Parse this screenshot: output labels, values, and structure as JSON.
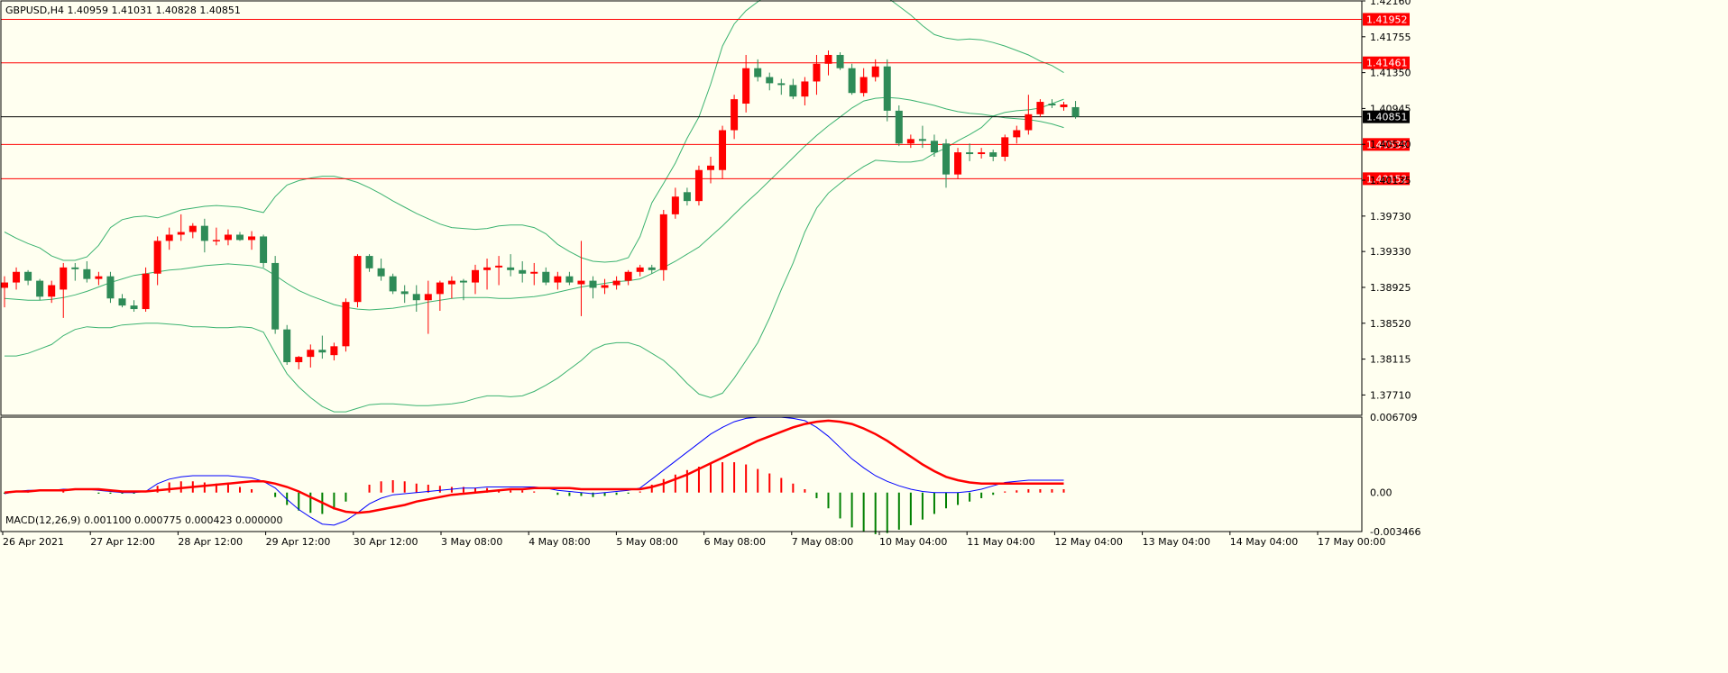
{
  "header": {
    "symbol_info": "GBPUSD,H4  1.40959 1.41031 1.40828 1.40851",
    "macd_info": "MACD(12,26,9) 0.001100 0.000775 0.000423 0.000000"
  },
  "colors": {
    "background": "#fffff0",
    "bull_candle": "#ff0000",
    "bear_candle": "#2e8b57",
    "bollinger": "#3cb371",
    "level_line": "#ff0000",
    "price_line": "#000000",
    "macd_main": "#0000ff",
    "macd_signal": "#ff0000"
  },
  "chart_data": [
    {
      "type": "candlestick",
      "title": "GBPUSD,H4",
      "ohlc_header": {
        "open": 1.40959,
        "high": 1.41031,
        "low": 1.40828,
        "close": 1.40851
      },
      "ylim": [
        1.3748,
        1.4216
      ],
      "y_ticks": [
        "1.42160",
        "1.41755",
        "1.41350",
        "1.40945",
        "1.40540",
        "1.40135",
        "1.39730",
        "1.39330",
        "1.38925",
        "1.38520",
        "1.38115",
        "1.37710"
      ],
      "x_ticks": [
        "26 Apr 2021",
        "27 Apr 12:00",
        "28 Apr 12:00",
        "29 Apr 12:00",
        "30 Apr 12:00",
        "3 May 08:00",
        "4 May 08:00",
        "5 May 08:00",
        "6 May 08:00",
        "7 May 08:00",
        "10 May 04:00",
        "11 May 04:00",
        "12 May 04:00",
        "13 May 04:00",
        "14 May 04:00",
        "17 May 00:00"
      ],
      "levels": [
        {
          "label": "1.41952",
          "value": 1.41952
        },
        {
          "label": "1.41461",
          "value": 1.41461
        },
        {
          "label": "1.40539",
          "value": 1.40539
        },
        {
          "label": "1.40152",
          "value": 1.40152
        }
      ],
      "current_price": {
        "label": "1.40851",
        "value": 1.40851
      },
      "candles": [
        [
          1.3892,
          1.3905,
          1.387,
          1.3898
        ],
        [
          1.3898,
          1.3915,
          1.389,
          1.391
        ],
        [
          1.391,
          1.3912,
          1.3895,
          1.39
        ],
        [
          1.39,
          1.3902,
          1.3878,
          1.3882
        ],
        [
          1.3882,
          1.39,
          1.3875,
          1.3895
        ],
        [
          1.389,
          1.392,
          1.3858,
          1.3915
        ],
        [
          1.3915,
          1.392,
          1.39,
          1.3913
        ],
        [
          1.3913,
          1.3922,
          1.3898,
          1.3902
        ],
        [
          1.3902,
          1.391,
          1.3895,
          1.3905
        ],
        [
          1.3905,
          1.391,
          1.3875,
          1.388
        ],
        [
          1.388,
          1.3885,
          1.387,
          1.3872
        ],
        [
          1.3872,
          1.3878,
          1.3865,
          1.3868
        ],
        [
          1.3868,
          1.3915,
          1.3865,
          1.3908
        ],
        [
          1.3908,
          1.395,
          1.3895,
          1.3945
        ],
        [
          1.3945,
          1.396,
          1.3935,
          1.3952
        ],
        [
          1.3952,
          1.3975,
          1.3945,
          1.3955
        ],
        [
          1.3955,
          1.3965,
          1.3948,
          1.3962
        ],
        [
          1.3962,
          1.397,
          1.3932,
          1.3945
        ],
        [
          1.3945,
          1.396,
          1.394,
          1.3946
        ],
        [
          1.3946,
          1.3958,
          1.394,
          1.3952
        ],
        [
          1.3952,
          1.3955,
          1.3945,
          1.3946
        ],
        [
          1.3946,
          1.3956,
          1.3935,
          1.395
        ],
        [
          1.395,
          1.3952,
          1.3915,
          1.392
        ],
        [
          1.392,
          1.3928,
          1.384,
          1.3845
        ],
        [
          1.3845,
          1.385,
          1.3805,
          1.3808
        ],
        [
          1.3808,
          1.3815,
          1.38,
          1.3814
        ],
        [
          1.3814,
          1.3828,
          1.3802,
          1.3822
        ],
        [
          1.3822,
          1.3838,
          1.3812,
          1.3819
        ],
        [
          1.3816,
          1.383,
          1.381,
          1.3826
        ],
        [
          1.3826,
          1.388,
          1.382,
          1.3876
        ],
        [
          1.3876,
          1.393,
          1.387,
          1.3928
        ],
        [
          1.3928,
          1.393,
          1.391,
          1.3914
        ],
        [
          1.3914,
          1.3925,
          1.39,
          1.3905
        ],
        [
          1.3905,
          1.3908,
          1.3885,
          1.3888
        ],
        [
          1.3888,
          1.3895,
          1.3875,
          1.3885
        ],
        [
          1.3885,
          1.3895,
          1.3865,
          1.3878
        ],
        [
          1.3878,
          1.39,
          1.384,
          1.3885
        ],
        [
          1.3885,
          1.39,
          1.3866,
          1.3898
        ],
        [
          1.3896,
          1.3905,
          1.388,
          1.39
        ],
        [
          1.39,
          1.3902,
          1.3878,
          1.3898
        ],
        [
          1.3898,
          1.3918,
          1.3885,
          1.3912
        ],
        [
          1.3912,
          1.3925,
          1.389,
          1.3915
        ],
        [
          1.3915,
          1.3928,
          1.3895,
          1.3917
        ],
        [
          1.3915,
          1.393,
          1.3905,
          1.3912
        ],
        [
          1.3912,
          1.3922,
          1.3898,
          1.3908
        ],
        [
          1.3908,
          1.392,
          1.3895,
          1.391
        ],
        [
          1.391,
          1.3915,
          1.3895,
          1.3898
        ],
        [
          1.3898,
          1.391,
          1.389,
          1.3905
        ],
        [
          1.3905,
          1.391,
          1.3895,
          1.3898
        ],
        [
          1.3896,
          1.3945,
          1.386,
          1.39
        ],
        [
          1.39,
          1.3905,
          1.388,
          1.3892
        ],
        [
          1.3892,
          1.3902,
          1.3885,
          1.3895
        ],
        [
          1.3895,
          1.3905,
          1.389,
          1.39
        ],
        [
          1.39,
          1.3912,
          1.3895,
          1.391
        ],
        [
          1.391,
          1.3918,
          1.3905,
          1.3915
        ],
        [
          1.3915,
          1.3918,
          1.3908,
          1.3912
        ],
        [
          1.3912,
          1.398,
          1.39,
          1.3975
        ],
        [
          1.3975,
          1.4005,
          1.397,
          1.3995
        ],
        [
          1.4,
          1.4005,
          1.3985,
          1.399
        ],
        [
          1.399,
          1.403,
          1.3985,
          1.4025
        ],
        [
          1.4025,
          1.404,
          1.401,
          1.403
        ],
        [
          1.4025,
          1.4075,
          1.4015,
          1.407
        ],
        [
          1.407,
          1.411,
          1.406,
          1.4105
        ],
        [
          1.41,
          1.4155,
          1.409,
          1.414
        ],
        [
          1.414,
          1.415,
          1.4125,
          1.413
        ],
        [
          1.413,
          1.4135,
          1.4115,
          1.4123
        ],
        [
          1.4123,
          1.4128,
          1.411,
          1.4121
        ],
        [
          1.4121,
          1.4128,
          1.4105,
          1.4108
        ],
        [
          1.4108,
          1.413,
          1.4098,
          1.4125
        ],
        [
          1.4125,
          1.4155,
          1.411,
          1.4145
        ],
        [
          1.4145,
          1.416,
          1.4132,
          1.4155
        ],
        [
          1.4155,
          1.4158,
          1.4138,
          1.414
        ],
        [
          1.414,
          1.4145,
          1.411,
          1.4112
        ],
        [
          1.4112,
          1.414,
          1.4108,
          1.413
        ],
        [
          1.413,
          1.415,
          1.4125,
          1.4142
        ],
        [
          1.4142,
          1.415,
          1.408,
          1.4092
        ],
        [
          1.4092,
          1.4098,
          1.4052,
          1.4055
        ],
        [
          1.4055,
          1.4065,
          1.405,
          1.406
        ],
        [
          1.406,
          1.4075,
          1.405,
          1.4058
        ],
        [
          1.4058,
          1.4065,
          1.404,
          1.4045
        ],
        [
          1.4055,
          1.406,
          1.4005,
          1.402
        ],
        [
          1.402,
          1.405,
          1.4015,
          1.4045
        ],
        [
          1.4045,
          1.4055,
          1.4035,
          1.4043
        ],
        [
          1.4043,
          1.405,
          1.4038,
          1.4045
        ],
        [
          1.4045,
          1.4048,
          1.4035,
          1.404
        ],
        [
          1.404,
          1.4065,
          1.4035,
          1.4062
        ],
        [
          1.4062,
          1.4075,
          1.4055,
          1.407
        ],
        [
          1.407,
          1.411,
          1.4065,
          1.4088
        ],
        [
          1.4088,
          1.4105,
          1.4085,
          1.4102
        ],
        [
          1.41,
          1.4105,
          1.4095,
          1.4098
        ],
        [
          1.4096,
          1.4102,
          1.4092,
          1.4099
        ],
        [
          1.4096,
          1.4103,
          1.4083,
          1.4085
        ]
      ],
      "bollinger": {
        "upper": [
          1.3955,
          1.3948,
          1.3942,
          1.3937,
          1.3928,
          1.3923,
          1.3923,
          1.3927,
          1.394,
          1.396,
          1.3969,
          1.3972,
          1.3973,
          1.3971,
          1.3975,
          1.398,
          1.3982,
          1.3984,
          1.3985,
          1.3984,
          1.3983,
          1.398,
          1.3977,
          1.3995,
          1.4008,
          1.4013,
          1.4016,
          1.4018,
          1.4018,
          1.4015,
          1.4011,
          1.4005,
          1.3998,
          1.399,
          1.3983,
          1.3976,
          1.397,
          1.3964,
          1.396,
          1.3959,
          1.3958,
          1.3959,
          1.3962,
          1.3963,
          1.3963,
          1.396,
          1.3953,
          1.3941,
          1.3933,
          1.3926,
          1.3922,
          1.3921,
          1.3922,
          1.3926,
          1.395,
          1.3988,
          1.401,
          1.4033,
          1.4061,
          1.4085,
          1.4122,
          1.4165,
          1.419,
          1.4205,
          1.4215,
          1.4225,
          1.4235,
          1.425,
          1.426,
          1.4258,
          1.426,
          1.4255,
          1.425,
          1.4245,
          1.4233,
          1.422,
          1.421,
          1.42,
          1.4188,
          1.4178,
          1.4174,
          1.4172,
          1.4173,
          1.4172,
          1.4169,
          1.4165,
          1.416,
          1.4155,
          1.4148,
          1.4143,
          1.4135
        ],
        "middle": [
          1.388,
          1.3879,
          1.3878,
          1.3878,
          1.3879,
          1.3881,
          1.3884,
          1.3888,
          1.3893,
          1.3898,
          1.3902,
          1.3906,
          1.3908,
          1.391,
          1.3912,
          1.3913,
          1.3915,
          1.3917,
          1.3918,
          1.3919,
          1.3918,
          1.3917,
          1.3914,
          1.3906,
          1.3897,
          1.3889,
          1.3883,
          1.3878,
          1.3873,
          1.387,
          1.3868,
          1.3867,
          1.3868,
          1.3869,
          1.3871,
          1.3873,
          1.3876,
          1.3878,
          1.388,
          1.3881,
          1.3881,
          1.3881,
          1.388,
          1.388,
          1.3881,
          1.3882,
          1.3884,
          1.3887,
          1.389,
          1.3893,
          1.3895,
          1.3897,
          1.3899,
          1.39,
          1.3902,
          1.3908,
          1.3915,
          1.3922,
          1.393,
          1.3938,
          1.395,
          1.3962,
          1.3975,
          1.3988,
          1.4,
          1.4013,
          1.4026,
          1.4039,
          1.4052,
          1.4064,
          1.4075,
          1.4085,
          1.4095,
          1.4103,
          1.4106,
          1.4107,
          1.4106,
          1.4104,
          1.4101,
          1.4098,
          1.4094,
          1.4091,
          1.4089,
          1.4088,
          1.4086,
          1.4084,
          1.4083,
          1.4082,
          1.408,
          1.4077,
          1.4073
        ],
        "lower": [
          1.3815,
          1.3815,
          1.3818,
          1.3823,
          1.3828,
          1.3838,
          1.3845,
          1.3848,
          1.3847,
          1.3847,
          1.385,
          1.3851,
          1.3852,
          1.3852,
          1.3851,
          1.385,
          1.3848,
          1.3848,
          1.3847,
          1.3847,
          1.3848,
          1.3847,
          1.3842,
          1.3818,
          1.3795,
          1.378,
          1.3768,
          1.3758,
          1.3752,
          1.3752,
          1.3756,
          1.376,
          1.3761,
          1.3761,
          1.376,
          1.3759,
          1.3759,
          1.376,
          1.3761,
          1.3763,
          1.3767,
          1.377,
          1.377,
          1.3769,
          1.377,
          1.3775,
          1.3782,
          1.379,
          1.38,
          1.381,
          1.3822,
          1.3828,
          1.383,
          1.383,
          1.3826,
          1.3818,
          1.381,
          1.3798,
          1.3784,
          1.3772,
          1.3768,
          1.3773,
          1.379,
          1.381,
          1.383,
          1.3858,
          1.389,
          1.392,
          1.3955,
          1.3982,
          1.3999,
          1.401,
          1.402,
          1.4029,
          1.4036,
          1.4035,
          1.4034,
          1.4034,
          1.4036,
          1.4044,
          1.405,
          1.4058,
          1.4065,
          1.4073,
          1.4086,
          1.409,
          1.4092,
          1.4093,
          1.4095,
          1.41,
          1.4105
        ]
      }
    },
    {
      "type": "macd",
      "title": "MACD(12,26,9)",
      "values_header": [
        0.0011,
        0.000775,
        0.000423,
        0.0
      ],
      "ylim": [
        -0.003466,
        0.006709
      ],
      "y_ticks": [
        "0.006709",
        "0.00",
        "-0.003466"
      ],
      "macd": [
        -0.0001,
        0.0001,
        0.0002,
        0.0002,
        0.0002,
        0.0003,
        0.0003,
        0.0003,
        0.0002,
        0.0001,
        0.0,
        0.0,
        0.0001,
        0.0008,
        0.0012,
        0.0014,
        0.0015,
        0.0015,
        0.0015,
        0.0015,
        0.0014,
        0.0013,
        0.001,
        0.0004,
        -0.0006,
        -0.0015,
        -0.0022,
        -0.0028,
        -0.0029,
        -0.0025,
        -0.0018,
        -0.001,
        -0.0005,
        -0.0002,
        -0.0001,
        0.0,
        0.0001,
        0.0002,
        0.0003,
        0.0004,
        0.0004,
        0.0005,
        0.0005,
        0.0005,
        0.0005,
        0.0005,
        0.0004,
        0.0002,
        0.0001,
        0.0,
        -0.0001,
        0.0,
        0.0001,
        0.0002,
        0.0004,
        0.0012,
        0.002,
        0.0028,
        0.0036,
        0.0044,
        0.0052,
        0.0058,
        0.0063,
        0.0066,
        0.0067,
        0.0067,
        0.0067,
        0.0066,
        0.0064,
        0.0058,
        0.005,
        0.004,
        0.003,
        0.0022,
        0.0015,
        0.001,
        0.0006,
        0.0003,
        0.0001,
        0.0,
        0.0,
        0.0,
        0.0001,
        0.0003,
        0.0006,
        0.0009,
        0.001,
        0.0011,
        0.0011,
        0.0011,
        0.0011
      ],
      "signal": [
        0.0,
        0.0001,
        0.0001,
        0.0002,
        0.0002,
        0.0002,
        0.0003,
        0.0003,
        0.0003,
        0.0002,
        0.0001,
        0.0001,
        0.0001,
        0.0002,
        0.0003,
        0.0004,
        0.0005,
        0.0006,
        0.0007,
        0.0008,
        0.0009,
        0.001,
        0.001,
        0.0008,
        0.0005,
        0.0001,
        -0.0004,
        -0.0009,
        -0.0014,
        -0.0017,
        -0.0018,
        -0.0017,
        -0.0015,
        -0.0013,
        -0.0011,
        -0.0008,
        -0.0006,
        -0.0004,
        -0.0002,
        -0.0001,
        0.0,
        0.0001,
        0.0002,
        0.0003,
        0.0003,
        0.0004,
        0.0004,
        0.0004,
        0.0004,
        0.0003,
        0.0003,
        0.0003,
        0.0003,
        0.0003,
        0.0003,
        0.0005,
        0.0008,
        0.0012,
        0.0016,
        0.0021,
        0.0026,
        0.0031,
        0.0036,
        0.0041,
        0.0046,
        0.005,
        0.0054,
        0.0058,
        0.0061,
        0.0063,
        0.0064,
        0.0063,
        0.0061,
        0.0057,
        0.0052,
        0.0046,
        0.0039,
        0.0032,
        0.0025,
        0.0019,
        0.0014,
        0.0011,
        0.0009,
        0.0008,
        0.0008,
        0.0008,
        0.0008,
        0.0008,
        0.0008,
        0.0008,
        0.0008
      ],
      "histogram": [
        -0.0001,
        0.0,
        0.0001,
        0.0,
        0.0,
        0.0001,
        0.0,
        0.0,
        -0.0001,
        -0.0001,
        -0.0001,
        -0.0001,
        0.0,
        0.0006,
        0.0009,
        0.001,
        0.001,
        0.0009,
        0.0008,
        0.0007,
        0.0005,
        0.0003,
        0.0,
        -0.0004,
        -0.0011,
        -0.0016,
        -0.0018,
        -0.0019,
        -0.0015,
        -0.0008,
        0.0,
        0.0007,
        0.001,
        0.0011,
        0.001,
        0.0008,
        0.0007,
        0.0006,
        0.0005,
        0.0005,
        0.0004,
        0.0004,
        0.0003,
        0.0002,
        0.0002,
        0.0001,
        0.0,
        -0.0002,
        -0.0003,
        -0.0003,
        -0.0004,
        -0.0003,
        -0.0002,
        -0.0001,
        0.0001,
        0.0007,
        0.0012,
        0.0016,
        0.002,
        0.0023,
        0.0026,
        0.0027,
        0.0027,
        0.0025,
        0.0021,
        0.0017,
        0.0013,
        0.0008,
        0.0003,
        -0.0005,
        -0.0014,
        -0.0023,
        -0.0031,
        -0.0035,
        -0.0037,
        -0.0036,
        -0.0033,
        -0.0029,
        -0.0024,
        -0.0019,
        -0.0014,
        -0.0011,
        -0.0008,
        -0.0005,
        -0.0002,
        0.0001,
        0.0002,
        0.0003,
        0.0003,
        0.0003,
        0.0003
      ]
    }
  ]
}
